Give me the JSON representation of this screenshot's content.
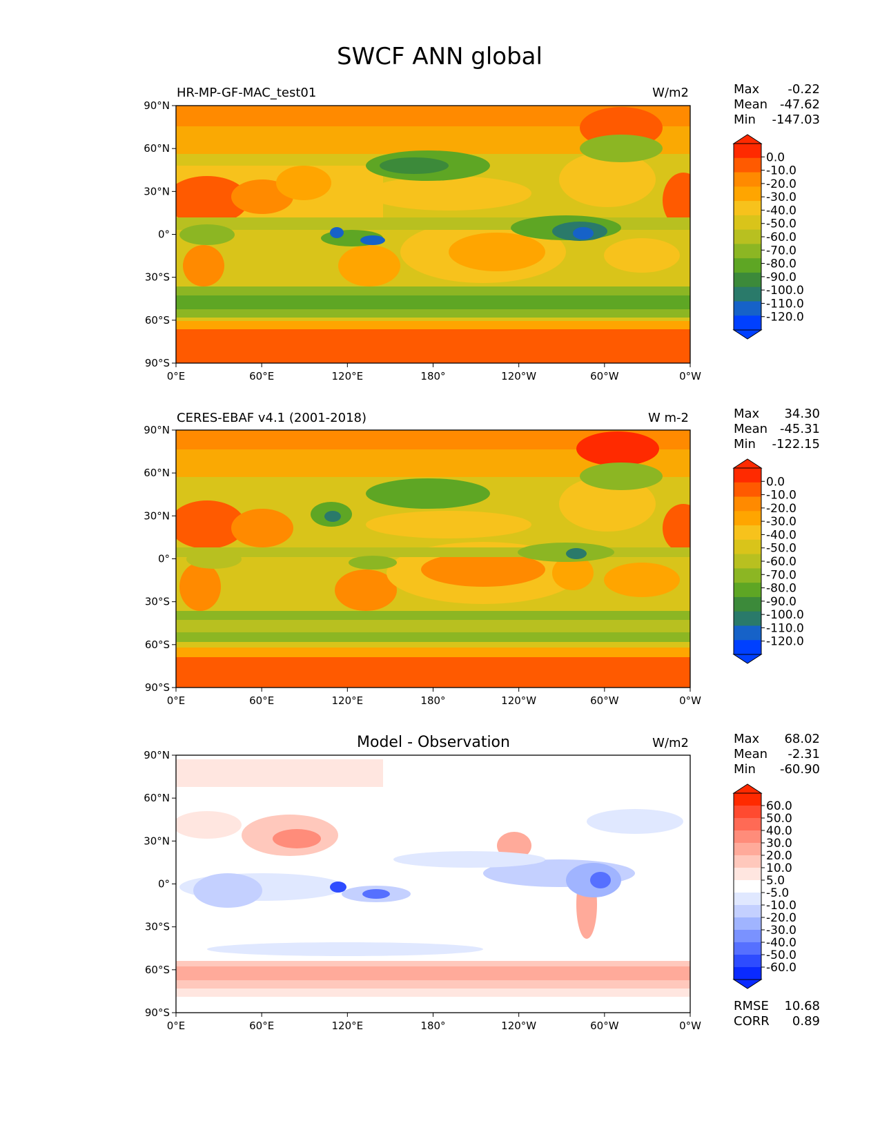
{
  "figure": {
    "title": "SWCF ANN global"
  },
  "axes": {
    "lat_ticks": [
      "90°N",
      "60°N",
      "30°N",
      "0°",
      "30°S",
      "60°S",
      "90°S"
    ],
    "lon_ticks": [
      "0°E",
      "60°E",
      "120°E",
      "180°",
      "120°W",
      "60°W",
      "0°W"
    ]
  },
  "panels": [
    {
      "id": "model",
      "left_label": "HR-MP-GF-MAC_test01",
      "center_label": "",
      "units": "W/m2",
      "stats": [
        {
          "label": "Max",
          "value": "-0.22"
        },
        {
          "label": "Mean",
          "value": "-47.62"
        },
        {
          "label": "Min",
          "value": "-147.03"
        }
      ],
      "colorbar": {
        "ticks": [
          "0.0",
          "-10.0",
          "-20.0",
          "-30.0",
          "-40.0",
          "-50.0",
          "-60.0",
          "-70.0",
          "-80.0",
          "-90.0",
          "-100.0",
          "-110.0",
          "-120.0"
        ],
        "colors": [
          "#ff2a00",
          "#ff5a00",
          "#ff8a00",
          "#ffa500",
          "#f7c21c",
          "#d9c41a",
          "#b8c020",
          "#8cb623",
          "#5ea624",
          "#3c8a3a",
          "#2a7a6a",
          "#1662c8",
          "#0040ff"
        ]
      }
    },
    {
      "id": "obs",
      "left_label": "CERES-EBAF v4.1 (2001-2018)",
      "center_label": "",
      "units": "W m-2",
      "stats": [
        {
          "label": "Max",
          "value": "34.30"
        },
        {
          "label": "Mean",
          "value": "-45.31"
        },
        {
          "label": "Min",
          "value": "-122.15"
        }
      ],
      "colorbar": {
        "ticks": [
          "0.0",
          "-10.0",
          "-20.0",
          "-30.0",
          "-40.0",
          "-50.0",
          "-60.0",
          "-70.0",
          "-80.0",
          "-90.0",
          "-100.0",
          "-110.0",
          "-120.0"
        ],
        "colors": [
          "#ff2a00",
          "#ff5a00",
          "#ff8a00",
          "#ffa500",
          "#f7c21c",
          "#d9c41a",
          "#b8c020",
          "#8cb623",
          "#5ea624",
          "#3c8a3a",
          "#2a7a6a",
          "#1662c8",
          "#0040ff"
        ]
      }
    },
    {
      "id": "diff",
      "left_label": "",
      "center_label": "Model - Observation",
      "units": "W/m2",
      "stats": [
        {
          "label": "Max",
          "value": "68.02"
        },
        {
          "label": "Mean",
          "value": "-2.31"
        },
        {
          "label": "Min",
          "value": "-60.90"
        }
      ],
      "extra_stats": [
        {
          "label": "RMSE",
          "value": "10.68"
        },
        {
          "label": "CORR",
          "value": "0.89"
        }
      ],
      "colorbar": {
        "ticks": [
          "60.0",
          "50.0",
          "40.0",
          "30.0",
          "20.0",
          "10.0",
          "5.0",
          "-5.0",
          "-10.0",
          "-20.0",
          "-30.0",
          "-40.0",
          "-50.0",
          "-60.0"
        ],
        "colors": [
          "#ff2a00",
          "#ff4a30",
          "#ff6a55",
          "#ff8c7a",
          "#ffaa9a",
          "#ffc8bc",
          "#ffe6e0",
          "#ffffff",
          "#e0e8ff",
          "#c4d0ff",
          "#a0b4ff",
          "#7a92ff",
          "#5670ff",
          "#2e4cff",
          "#0a2aff"
        ]
      }
    }
  ]
}
